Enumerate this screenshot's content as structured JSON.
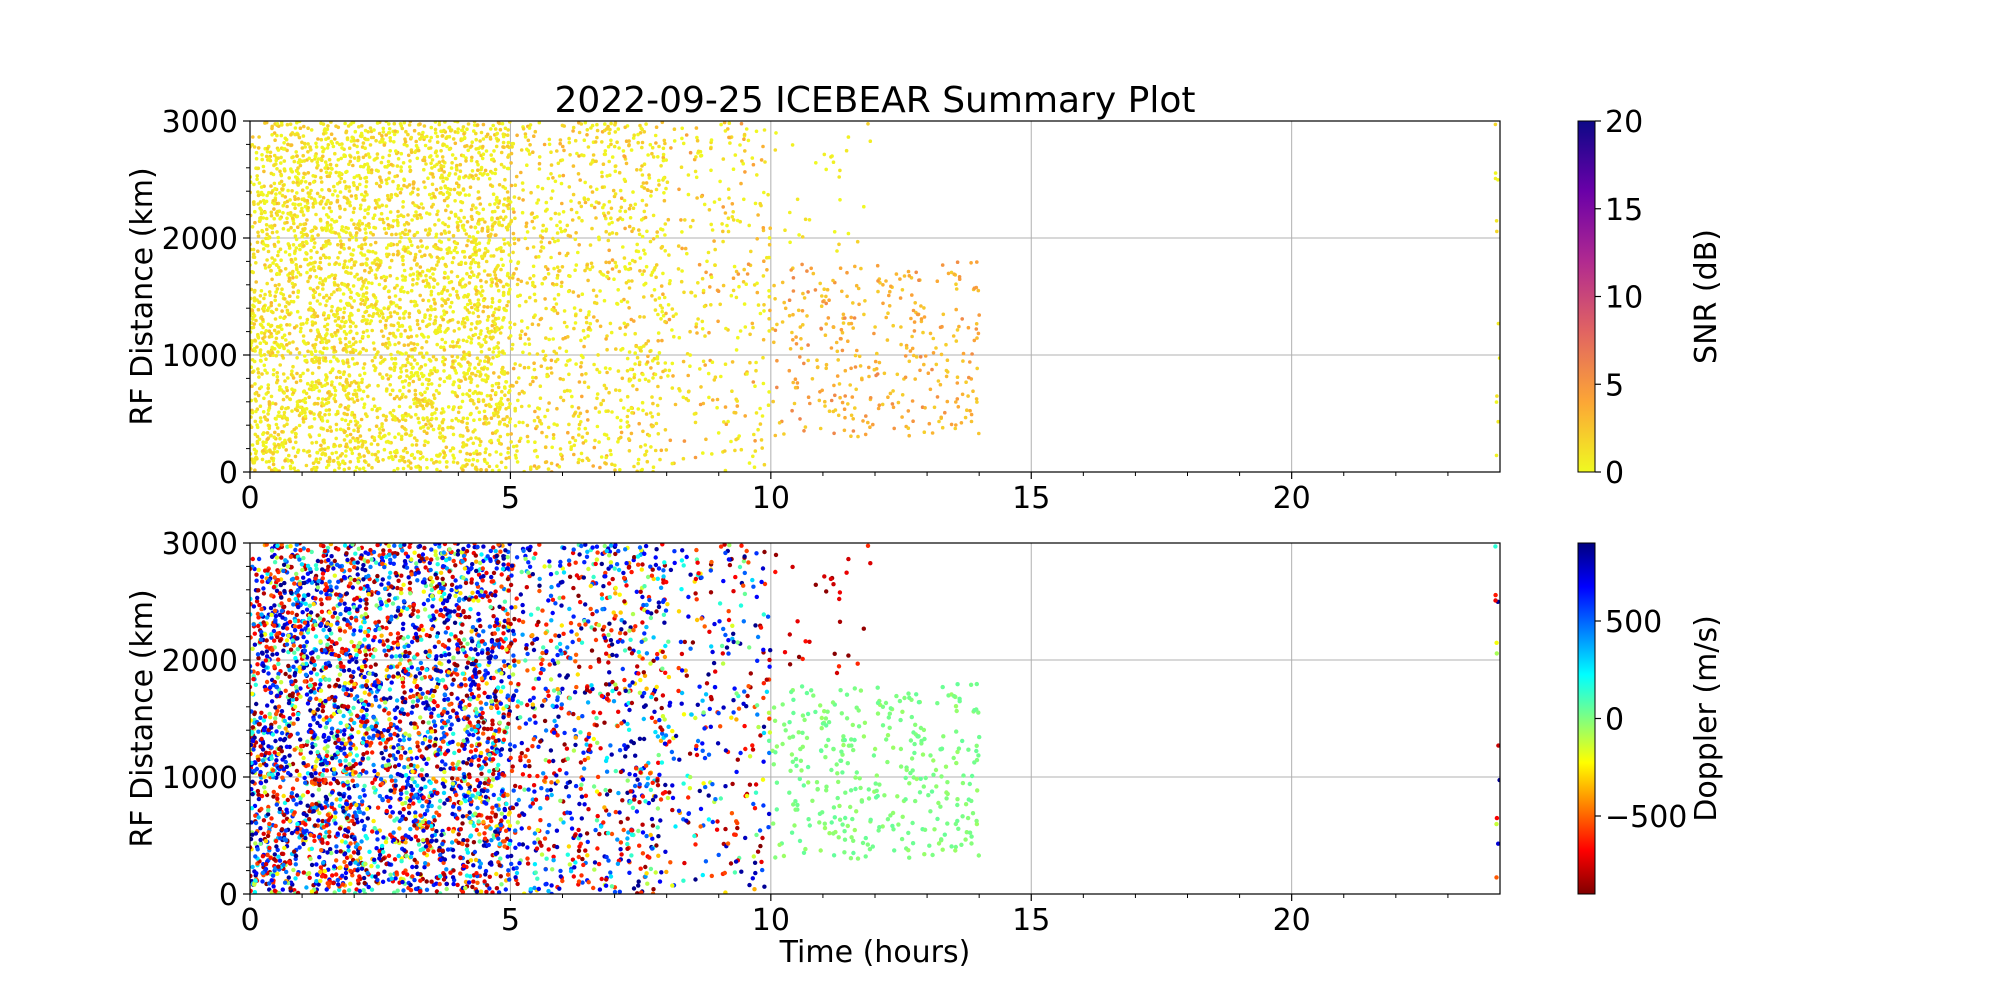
{
  "title": "2022-09-25 ICEBEAR Summary Plot",
  "xlabel": "Time (hours)",
  "chart_data": [
    {
      "type": "scatter",
      "panel": "snr",
      "title": "2022-09-25 ICEBEAR Summary Plot",
      "xlabel": "",
      "ylabel": "RF Distance (km)",
      "xlim": [
        0,
        24
      ],
      "ylim": [
        0,
        3000
      ],
      "xticks": [
        0,
        5,
        10,
        15,
        20
      ],
      "yticks": [
        0,
        1000,
        2000,
        3000
      ],
      "grid": true,
      "color_by": "SNR (dB)",
      "colorbar": {
        "label": "SNR (dB)",
        "range": [
          0,
          20
        ],
        "ticks": [
          0,
          5,
          10,
          15,
          20
        ],
        "tick_labels": [
          "0",
          "5",
          "10",
          "15",
          "20"
        ],
        "colormap": "plasma_r",
        "stops": [
          "#f0f921",
          "#fca636",
          "#e16462",
          "#b12a90",
          "#6a00a8",
          "#0d0887"
        ]
      },
      "point_density": [
        {
          "t": [
            0,
            2
          ],
          "r": [
            0,
            3000
          ],
          "n": 1500,
          "snr": [
            0,
            3
          ]
        },
        {
          "t": [
            2,
            5
          ],
          "r": [
            0,
            3000
          ],
          "n": 2000,
          "snr": [
            0,
            3
          ]
        },
        {
          "t": [
            5,
            8
          ],
          "r": [
            0,
            3000
          ],
          "n": 900,
          "snr": [
            0,
            4
          ]
        },
        {
          "t": [
            8,
            10
          ],
          "r": [
            0,
            3000
          ],
          "n": 300,
          "snr": [
            0,
            5
          ]
        },
        {
          "t": [
            10,
            14
          ],
          "r": [
            300,
            1800
          ],
          "n": 350,
          "snr": [
            2,
            6
          ]
        },
        {
          "t": [
            10,
            12
          ],
          "r": [
            1800,
            3000
          ],
          "n": 30,
          "snr": [
            0,
            2
          ]
        },
        {
          "t": [
            23.9,
            24
          ],
          "r": [
            0,
            3000
          ],
          "n": 12,
          "snr": [
            0,
            2
          ]
        }
      ]
    },
    {
      "type": "scatter",
      "panel": "doppler",
      "xlabel": "Time (hours)",
      "ylabel": "RF Distance (km)",
      "xlim": [
        0,
        24
      ],
      "ylim": [
        0,
        3000
      ],
      "xticks": [
        0,
        5,
        10,
        15,
        20
      ],
      "yticks": [
        0,
        1000,
        2000,
        3000
      ],
      "grid": true,
      "color_by": "Doppler (m/s)",
      "colorbar": {
        "label": "Doppler (m/s)",
        "range": [
          -900,
          900
        ],
        "ticks": [
          -500,
          0,
          500
        ],
        "tick_labels": [
          "−500",
          "0",
          "500"
        ],
        "colormap": "jet_r",
        "stops": [
          "#800000",
          "#ff0000",
          "#ff8000",
          "#ffff00",
          "#80ff80",
          "#00ffff",
          "#0080ff",
          "#0000ff",
          "#000080"
        ]
      },
      "point_density": [
        {
          "t": [
            0,
            2
          ],
          "r": [
            0,
            3000
          ],
          "n": 1500,
          "doppler": "mixed"
        },
        {
          "t": [
            2,
            5
          ],
          "r": [
            0,
            3000
          ],
          "n": 2000,
          "doppler": "mixed"
        },
        {
          "t": [
            5,
            8
          ],
          "r": [
            0,
            3000
          ],
          "n": 900,
          "doppler": "mixed"
        },
        {
          "t": [
            8,
            10
          ],
          "r": [
            0,
            3000
          ],
          "n": 300,
          "doppler": "mixed"
        },
        {
          "t": [
            10,
            14
          ],
          "r": [
            300,
            1800
          ],
          "n": 350,
          "doppler": [
            -50,
            50
          ]
        },
        {
          "t": [
            10,
            12
          ],
          "r": [
            1800,
            3000
          ],
          "n": 30,
          "doppler": [
            -900,
            -600
          ]
        },
        {
          "t": [
            23.9,
            24
          ],
          "r": [
            0,
            3000
          ],
          "n": 12,
          "doppler": "mixed"
        }
      ]
    }
  ]
}
